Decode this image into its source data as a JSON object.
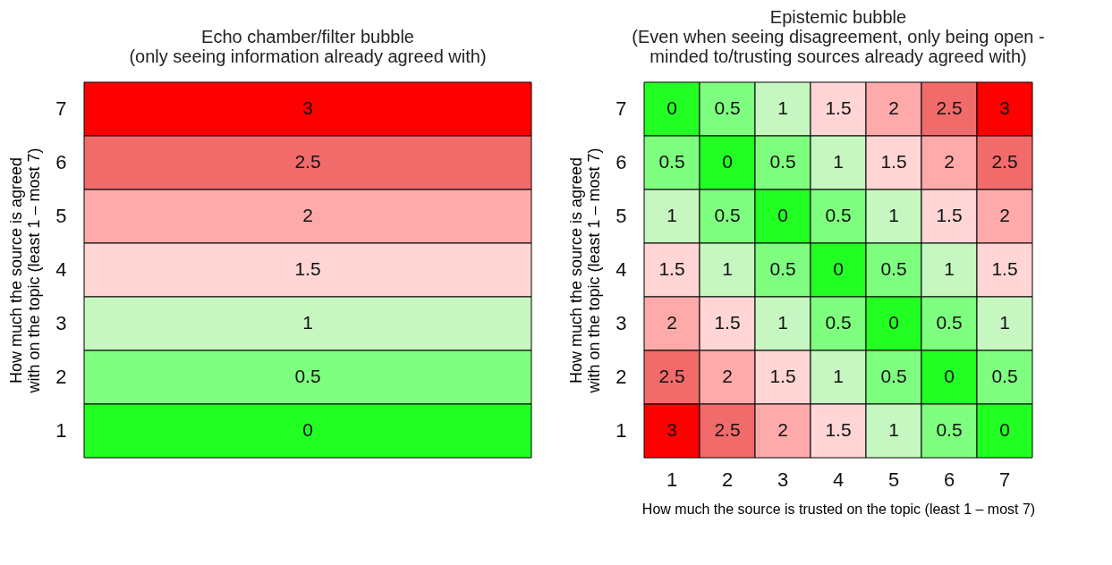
{
  "chart_data": [
    {
      "type": "heatmap",
      "title": "Echo chamber/filter bubble\n(only seeing information  already agreed with)",
      "ylabel": "How much the source is agreed with on the topic (least 1 – most 7)",
      "categories": [
        null
      ],
      "y_categories": [
        "7",
        "6",
        "5",
        "4",
        "3",
        "2",
        "1"
      ],
      "cells": [
        [
          3
        ],
        [
          2.5
        ],
        [
          2
        ],
        [
          1.5
        ],
        [
          1
        ],
        [
          0.5
        ],
        [
          0
        ]
      ],
      "colors": [
        [
          "#ff0000"
        ],
        [
          "#f26b6b"
        ],
        [
          "#ffaaaa"
        ],
        [
          "#ffd5d5"
        ],
        [
          "#c6f7c0"
        ],
        [
          "#7fff7f"
        ],
        [
          "#22ff22"
        ]
      ],
      "data_labels": true,
      "tick_labels": "y"
    },
    {
      "type": "heatmap",
      "title": "Epistemic bubble\n(Even when seeing disagreement, only being open -\nminded to/trusting  sources already agreed with)",
      "xlabel": "How much the source is trusted on the topic (least 1 – most 7)",
      "ylabel": "How much the source is agreed with on the topic (least 1 – most 7)",
      "categories": [
        "1",
        "2",
        "3",
        "4",
        "5",
        "6",
        "7"
      ],
      "y_categories": [
        "7",
        "6",
        "5",
        "4",
        "3",
        "2",
        "1"
      ],
      "cells": [
        [
          0,
          0.5,
          1,
          1.5,
          2,
          2.5,
          3
        ],
        [
          0.5,
          0,
          0.5,
          1,
          1.5,
          2,
          2.5
        ],
        [
          1,
          0.5,
          0,
          0.5,
          1,
          1.5,
          2
        ],
        [
          1.5,
          1,
          0.5,
          0,
          0.5,
          1,
          1.5
        ],
        [
          2,
          1.5,
          1,
          0.5,
          0,
          0.5,
          1
        ],
        [
          2.5,
          2,
          1.5,
          1,
          0.5,
          0,
          0.5
        ],
        [
          3,
          2.5,
          2,
          1.5,
          1,
          0.5,
          0
        ]
      ],
      "colors": [
        [
          "#22ff22",
          "#7fff7f",
          "#c6f7c0",
          "#ffd5d5",
          "#ffaaaa",
          "#f26b6b",
          "#ff0000"
        ],
        [
          "#7fff7f",
          "#22ff22",
          "#7fff7f",
          "#c6f7c0",
          "#ffd5d5",
          "#ffaaaa",
          "#f26b6b"
        ],
        [
          "#c6f7c0",
          "#7fff7f",
          "#22ff22",
          "#7fff7f",
          "#c6f7c0",
          "#ffd5d5",
          "#ffaaaa"
        ],
        [
          "#ffd5d5",
          "#c6f7c0",
          "#7fff7f",
          "#22ff22",
          "#7fff7f",
          "#c6f7c0",
          "#ffd5d5"
        ],
        [
          "#ffaaaa",
          "#ffd5d5",
          "#c6f7c0",
          "#7fff7f",
          "#22ff22",
          "#7fff7f",
          "#c6f7c0"
        ],
        [
          "#f26b6b",
          "#ffaaaa",
          "#ffd5d5",
          "#c6f7c0",
          "#7fff7f",
          "#22ff22",
          "#7fff7f"
        ],
        [
          "#ff0000",
          "#f26b6b",
          "#ffaaaa",
          "#ffd5d5",
          "#c6f7c0",
          "#7fff7f",
          "#22ff22"
        ]
      ],
      "data_labels": true
    }
  ]
}
